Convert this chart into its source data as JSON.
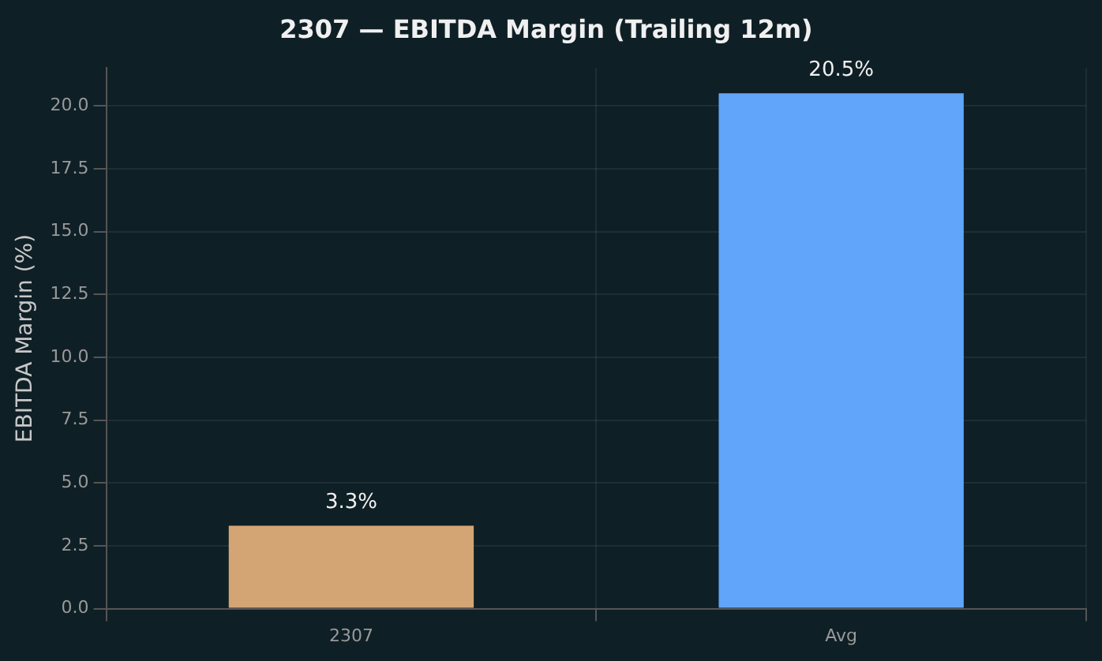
{
  "chart_data": {
    "type": "bar",
    "title": "2307 — EBITDA Margin (Trailing 12m)",
    "ylabel": "EBITDA Margin (%)",
    "categories": [
      "2307",
      "Avg"
    ],
    "values": [
      3.3,
      20.5
    ],
    "colors": [
      "#d4a574",
      "#60a5fa"
    ],
    "value_labels": [
      "3.3%",
      "20.5%"
    ],
    "ylim": [
      0,
      21.5
    ],
    "yticks": [
      {
        "value": 0,
        "label": "0.0"
      },
      {
        "value": 2.5,
        "label": "2.5"
      },
      {
        "value": 5,
        "label": "5.0"
      },
      {
        "value": 7.5,
        "label": "7.5"
      },
      {
        "value": 10,
        "label": "10.0"
      },
      {
        "value": 12.5,
        "label": "12.5"
      },
      {
        "value": 15,
        "label": "15.0"
      },
      {
        "value": 17.5,
        "label": "17.5"
      },
      {
        "value": 20,
        "label": "20.0"
      }
    ],
    "grid": true
  }
}
